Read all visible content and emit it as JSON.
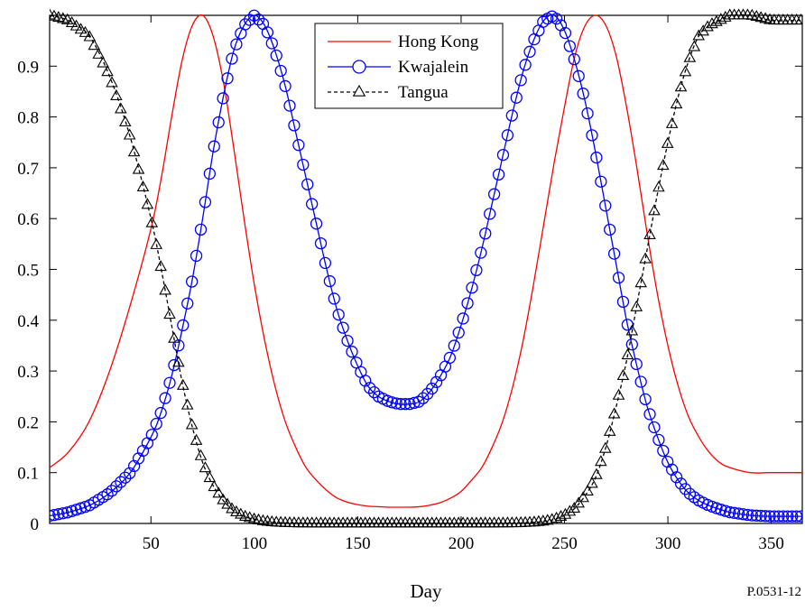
{
  "chart_data": {
    "type": "line",
    "title": "",
    "xlabel": "Day",
    "ylabel": "",
    "xlim": [
      1,
      365
    ],
    "ylim": [
      0,
      1
    ],
    "x_ticks": [
      50,
      100,
      150,
      200,
      250,
      300,
      350
    ],
    "y_ticks": [
      0,
      0.1,
      0.2,
      0.3,
      0.4,
      0.5,
      0.6,
      0.7,
      0.8,
      0.9
    ],
    "y_tick_labels": [
      "0",
      "0.1",
      "0.2",
      "0.3",
      "0.4",
      "0.5",
      "0.6",
      "0.7",
      "0.8",
      "0.9"
    ],
    "grid": false,
    "legend_position": "top-center",
    "x": [
      1,
      10,
      20,
      30,
      40,
      50,
      55,
      60,
      65,
      70,
      75,
      80,
      85,
      90,
      95,
      100,
      105,
      110,
      115,
      120,
      125,
      130,
      135,
      140,
      145,
      150,
      155,
      160,
      165,
      170,
      175,
      180,
      185,
      190,
      195,
      200,
      205,
      210,
      215,
      220,
      225,
      230,
      235,
      240,
      245,
      250,
      255,
      260,
      265,
      270,
      275,
      280,
      285,
      290,
      295,
      300,
      305,
      310,
      315,
      320,
      325,
      330,
      340,
      350,
      365
    ],
    "series": [
      {
        "name": "Hong Kong",
        "color": "#ff0000",
        "marker": "none",
        "line": "solid",
        "values": [
          0.11,
          0.14,
          0.2,
          0.3,
          0.43,
          0.58,
          0.68,
          0.8,
          0.91,
          0.98,
          1.0,
          0.96,
          0.87,
          0.74,
          0.6,
          0.47,
          0.36,
          0.27,
          0.2,
          0.15,
          0.11,
          0.085,
          0.065,
          0.05,
          0.042,
          0.037,
          0.034,
          0.033,
          0.032,
          0.032,
          0.032,
          0.033,
          0.036,
          0.041,
          0.05,
          0.063,
          0.085,
          0.11,
          0.15,
          0.2,
          0.27,
          0.36,
          0.47,
          0.59,
          0.71,
          0.82,
          0.92,
          0.98,
          1.0,
          0.98,
          0.92,
          0.82,
          0.7,
          0.57,
          0.45,
          0.35,
          0.27,
          0.21,
          0.17,
          0.14,
          0.12,
          0.11,
          0.1,
          0.1,
          0.1
        ]
      },
      {
        "name": "Kwajalein",
        "color": "#0000ff",
        "marker": "circle",
        "line": "solid",
        "values": [
          0.015,
          0.022,
          0.035,
          0.06,
          0.1,
          0.17,
          0.22,
          0.29,
          0.38,
          0.48,
          0.6,
          0.73,
          0.84,
          0.93,
          0.98,
          1.0,
          0.98,
          0.93,
          0.86,
          0.77,
          0.68,
          0.59,
          0.5,
          0.42,
          0.36,
          0.31,
          0.27,
          0.25,
          0.24,
          0.235,
          0.235,
          0.24,
          0.26,
          0.29,
          0.33,
          0.39,
          0.46,
          0.54,
          0.63,
          0.72,
          0.81,
          0.89,
          0.95,
          0.99,
          1.0,
          0.97,
          0.91,
          0.83,
          0.73,
          0.62,
          0.51,
          0.4,
          0.31,
          0.23,
          0.17,
          0.12,
          0.085,
          0.06,
          0.045,
          0.035,
          0.028,
          0.022,
          0.016,
          0.014,
          0.014
        ]
      },
      {
        "name": "Tangua",
        "color": "#000000",
        "marker": "triangle",
        "line": "dashed",
        "values": [
          1.0,
          0.99,
          0.96,
          0.88,
          0.76,
          0.6,
          0.5,
          0.39,
          0.28,
          0.19,
          0.12,
          0.075,
          0.045,
          0.025,
          0.014,
          0.008,
          0.004,
          0.002,
          0.001,
          0.0005,
          0.0003,
          0.0002,
          0.0001,
          0.0001,
          0.0001,
          0.0001,
          0.0001,
          0.0001,
          0.0001,
          0.0001,
          0.0001,
          0.0001,
          0.0001,
          0.0001,
          0.0001,
          0.0001,
          0.0001,
          0.0001,
          0.0002,
          0.0003,
          0.0005,
          0.001,
          0.002,
          0.004,
          0.008,
          0.016,
          0.03,
          0.055,
          0.09,
          0.15,
          0.23,
          0.32,
          0.43,
          0.54,
          0.65,
          0.75,
          0.84,
          0.91,
          0.96,
          0.98,
          0.99,
          1.0,
          1.0,
          0.99,
          0.99
        ]
      }
    ]
  },
  "figure_id": "P.0531-12"
}
